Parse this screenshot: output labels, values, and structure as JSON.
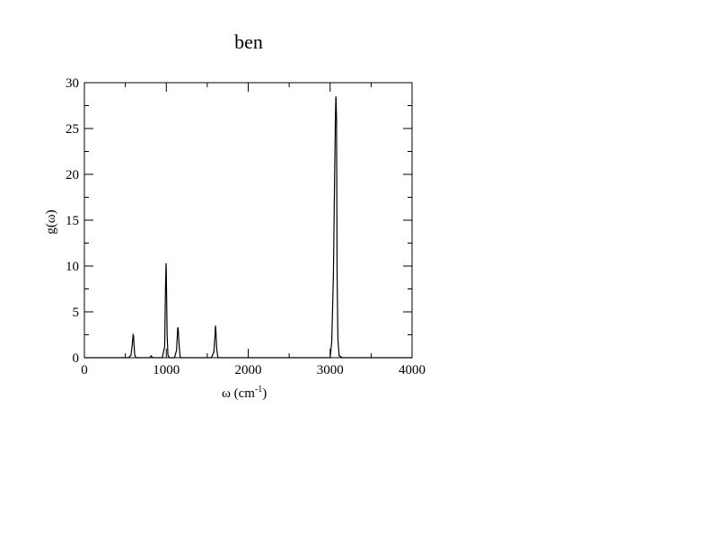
{
  "chart_data": {
    "type": "line",
    "title": "ben",
    "xlabel": {
      "main": "ω (cm",
      "sup": "-1",
      "close": ")"
    },
    "ylabel": "g(ω)",
    "xlim": [
      0,
      4000
    ],
    "ylim": [
      0,
      30
    ],
    "x_ticks": [
      0,
      1000,
      2000,
      3000,
      4000
    ],
    "x_tick_labels": [
      "0",
      "1000",
      "2000",
      "3000",
      "4000"
    ],
    "y_ticks": [
      0,
      5,
      10,
      15,
      20,
      25,
      30
    ],
    "y_tick_labels": [
      "0",
      "5",
      "10",
      "15",
      "20",
      "25",
      "30"
    ],
    "grid": false,
    "line_color": "#000000",
    "series": [
      {
        "x": [
          0,
          540,
          570,
          585,
          595,
          600,
          605,
          615,
          630,
          660,
          800,
          815,
          825,
          835,
          850,
          950,
          980,
          990,
          997,
          1000,
          1003,
          1010,
          1020,
          1035,
          1100,
          1125,
          1135,
          1140,
          1145,
          1155,
          1170,
          1550,
          1580,
          1595,
          1600,
          1605,
          1615,
          1630,
          2950,
          3000,
          3020,
          3040,
          3055,
          3065,
          3070,
          3072,
          3078,
          3085,
          3095,
          3110,
          3150,
          4000
        ],
        "y": [
          0,
          0,
          0.3,
          1.5,
          2.5,
          2.4,
          1.5,
          0.3,
          0,
          0,
          0,
          0.2,
          0.1,
          0,
          0,
          0,
          1.2,
          7.5,
          10.3,
          9.5,
          7.2,
          2.5,
          0.3,
          0,
          0,
          0.8,
          2.5,
          3.3,
          3.2,
          1.5,
          0,
          0,
          0.6,
          2.5,
          3.5,
          3.0,
          1.0,
          0,
          0,
          0,
          1.8,
          9,
          20,
          26.5,
          28.5,
          28.3,
          26,
          9,
          2,
          0.2,
          0,
          0
        ]
      }
    ]
  }
}
